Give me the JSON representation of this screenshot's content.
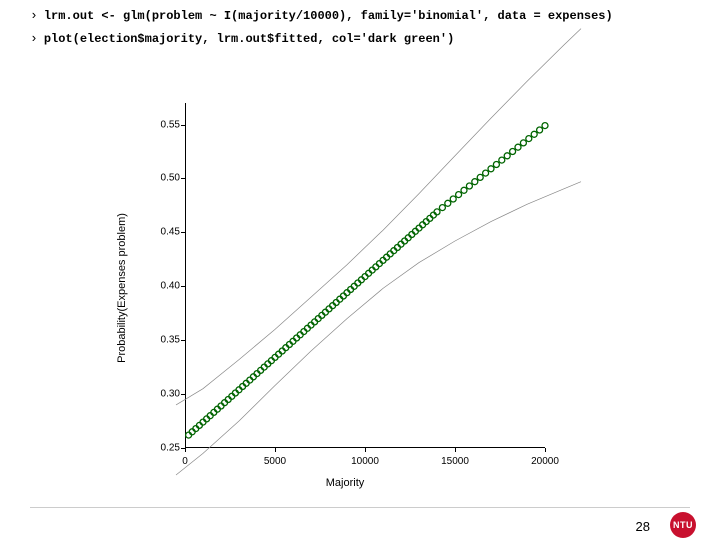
{
  "code": {
    "line1": "lrm.out <- glm(problem ~ I(majority/10000), family='binomial', data = expenses)",
    "line2": "plot(election$majority, lrm.out$fitted, col='dark green')"
  },
  "chart": {
    "type": "scatter-with-bands",
    "xlabel": "Majority",
    "ylabel": "Probability(Expenses problem)",
    "xlim": [
      0,
      20000
    ],
    "ylim": [
      0.25,
      0.57
    ],
    "xticks": [
      0,
      5000,
      10000,
      15000,
      20000
    ],
    "yticks": [
      0.25,
      0.3,
      0.35,
      0.4,
      0.45,
      0.5,
      0.55
    ],
    "xtick_labels": [
      "0",
      "5000",
      "10000",
      "15000",
      "20000"
    ],
    "ytick_labels": [
      "0.25",
      "0.30",
      "0.35",
      "0.40",
      "0.45",
      "0.50",
      "0.55"
    ],
    "series": {
      "fitted": {
        "color": "#006400",
        "marker": "circle-open",
        "marker_size": 3,
        "points_x": [
          200,
          400,
          600,
          800,
          1000,
          1200,
          1400,
          1600,
          1800,
          2000,
          2200,
          2400,
          2600,
          2800,
          3000,
          3200,
          3400,
          3600,
          3800,
          4000,
          4200,
          4400,
          4600,
          4800,
          5000,
          5200,
          5400,
          5600,
          5800,
          6000,
          6200,
          6400,
          6600,
          6800,
          7000,
          7200,
          7400,
          7600,
          7800,
          8000,
          8200,
          8400,
          8600,
          8800,
          9000,
          9200,
          9400,
          9600,
          9800,
          10000,
          10200,
          10400,
          10600,
          10800,
          11000,
          11200,
          11400,
          11600,
          11800,
          12000,
          12200,
          12400,
          12600,
          12800,
          13000,
          13200,
          13400,
          13600,
          13800,
          14000,
          14300,
          14600,
          14900,
          15200,
          15500,
          15800,
          16100,
          16400,
          16700,
          17000,
          17300,
          17600,
          17900,
          18200,
          18500,
          18800,
          19100,
          19400,
          19700,
          20000,
          20300,
          20600,
          20900,
          21200
        ],
        "points_y": [
          0.262,
          0.265,
          0.268,
          0.271,
          0.274,
          0.277,
          0.28,
          0.283,
          0.286,
          0.289,
          0.292,
          0.295,
          0.298,
          0.301,
          0.304,
          0.307,
          0.31,
          0.313,
          0.316,
          0.319,
          0.322,
          0.325,
          0.328,
          0.331,
          0.334,
          0.337,
          0.34,
          0.343,
          0.346,
          0.349,
          0.352,
          0.355,
          0.358,
          0.361,
          0.364,
          0.367,
          0.37,
          0.373,
          0.376,
          0.379,
          0.382,
          0.385,
          0.388,
          0.391,
          0.394,
          0.397,
          0.4,
          0.403,
          0.406,
          0.409,
          0.412,
          0.415,
          0.418,
          0.421,
          0.424,
          0.427,
          0.43,
          0.433,
          0.436,
          0.439,
          0.442,
          0.445,
          0.448,
          0.451,
          0.454,
          0.457,
          0.46,
          0.463,
          0.466,
          0.469,
          0.473,
          0.477,
          0.481,
          0.485,
          0.489,
          0.493,
          0.497,
          0.501,
          0.505,
          0.509,
          0.513,
          0.517,
          0.521,
          0.525,
          0.529,
          0.533,
          0.537,
          0.541,
          0.545,
          0.549,
          0.553,
          0.557,
          0.561,
          0.565
        ]
      },
      "band_low": {
        "color": "#888888",
        "width": 0.7,
        "x": [
          -500,
          1000,
          3000,
          5000,
          7000,
          9000,
          11000,
          13000,
          15000,
          17000,
          19000,
          21000,
          22000
        ],
        "y": [
          0.225,
          0.245,
          0.275,
          0.308,
          0.34,
          0.37,
          0.398,
          0.422,
          0.442,
          0.46,
          0.476,
          0.49,
          0.497
        ]
      },
      "band_high": {
        "color": "#888888",
        "width": 0.7,
        "x": [
          -500,
          1000,
          3000,
          5000,
          7000,
          9000,
          11000,
          13000,
          15000,
          17000,
          19000,
          21000,
          22000
        ],
        "y": [
          0.29,
          0.305,
          0.332,
          0.36,
          0.39,
          0.42,
          0.452,
          0.486,
          0.521,
          0.556,
          0.59,
          0.623,
          0.639
        ]
      }
    },
    "background_color": "#ffffff",
    "axis_color": "#000000",
    "tick_fontsize": 10,
    "label_fontsize": 11
  },
  "footer": {
    "page": "28",
    "logo_text": "NTU",
    "logo_bg": "#c8102e",
    "logo_fg": "#ffffff"
  }
}
